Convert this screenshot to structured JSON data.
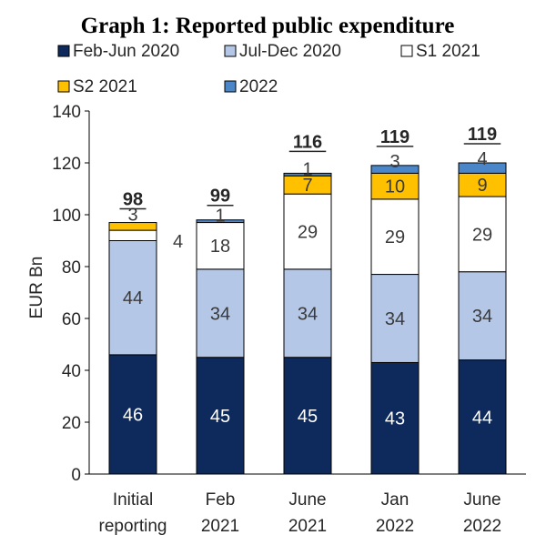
{
  "chart_data": {
    "type": "bar",
    "stacked": true,
    "title": "Graph 1: Reported public expenditure",
    "ylabel": "EUR Bn",
    "ylim": [
      0,
      140
    ],
    "ytick_step": 20,
    "grid": false,
    "legend_position": "top",
    "categories": [
      [
        "Initial",
        "reporting"
      ],
      [
        "Feb",
        "2021"
      ],
      [
        "June",
        "2021"
      ],
      [
        "Jan",
        "2022"
      ],
      [
        "June",
        "2022"
      ]
    ],
    "series": [
      {
        "name": "Feb-Jun 2020",
        "color": "#0e2a5c",
        "label_color": "#ffffff",
        "values": [
          46,
          45,
          45,
          43,
          44
        ]
      },
      {
        "name": "Jul-Dec 2020",
        "color": "#b4c7e7",
        "label_color": "#3a3a3a",
        "values": [
          44,
          34,
          34,
          34,
          34
        ]
      },
      {
        "name": "S1 2021",
        "color": "#ffffff",
        "label_color": "#3a3a3a",
        "values": [
          4,
          18,
          29,
          29,
          29
        ]
      },
      {
        "name": "S2 2021",
        "color": "#ffc000",
        "label_color": "#3a3a3a",
        "values": [
          3,
          0,
          7,
          10,
          9
        ]
      },
      {
        "name": "2022",
        "color": "#4a86c8",
        "label_color": "#3a3a3a",
        "values": [
          0,
          1,
          1,
          3,
          4
        ]
      }
    ],
    "totals": [
      "98",
      "99",
      "116",
      "119",
      "119"
    ],
    "segment_labels": [
      [
        "46",
        "44",
        "4",
        "3",
        ""
      ],
      [
        "45",
        "34",
        "18",
        "",
        "1"
      ],
      [
        "45",
        "34",
        "29",
        "7",
        "1"
      ],
      [
        "43",
        "34",
        "29",
        "10",
        "3"
      ],
      [
        "44",
        "34",
        "29",
        "9",
        "4"
      ]
    ]
  }
}
